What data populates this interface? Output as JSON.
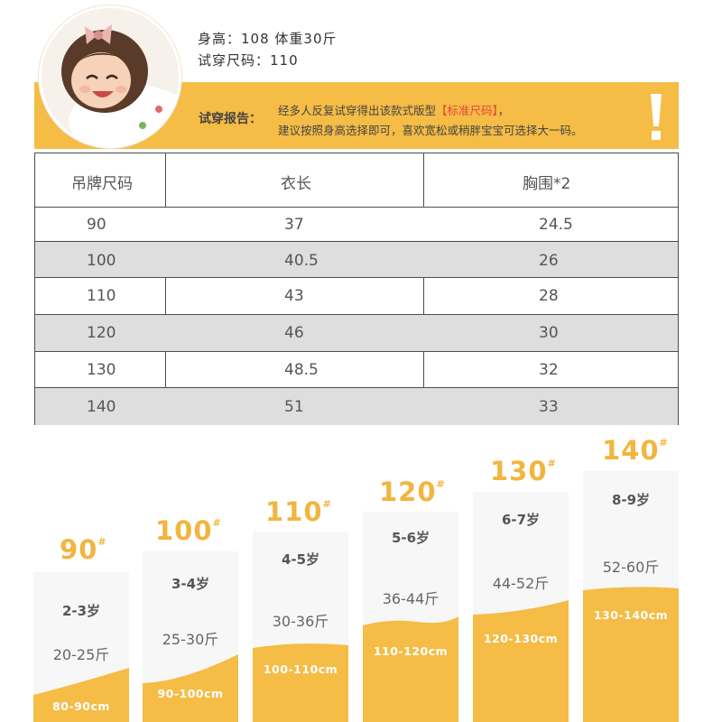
{
  "model": {
    "stats_line": "身高：108  体重30斤",
    "tried_size_line": "试穿尺码：110"
  },
  "report": {
    "label": "试穿报告：",
    "line1_before": "经多人反复试穿得出该款式版型",
    "line1_highlight": "【标准尺码】",
    "line1_after": "，",
    "line2": "建议按照身高选择即可，喜欢宽松或稍胖宝宝可选择大一码。",
    "highlight_color": "#e5463a"
  },
  "colors": {
    "accent": "#f5bc46",
    "size_number": "#f2b53f",
    "row_shade": "#dedede"
  },
  "table": {
    "headers": [
      "吊牌尺码",
      "衣长",
      "胸围*2"
    ],
    "rows": [
      [
        "90",
        "37",
        "24.5"
      ],
      [
        "100",
        "40.5",
        "26"
      ],
      [
        "110",
        "43",
        "28"
      ],
      [
        "120",
        "46",
        "30"
      ],
      [
        "130",
        "48.5",
        "32"
      ],
      [
        "140",
        "51",
        "33"
      ]
    ]
  },
  "size_cards": [
    {
      "size": "90",
      "mark": "#",
      "age": "2-3岁",
      "weight": "20-25斤",
      "height": "80-90cm"
    },
    {
      "size": "100",
      "mark": "#",
      "age": "3-4岁",
      "weight": "25-30斤",
      "height": "90-100cm"
    },
    {
      "size": "110",
      "mark": "#",
      "age": "4-5岁",
      "weight": "30-36斤",
      "height": "100-110cm"
    },
    {
      "size": "120",
      "mark": "#",
      "age": "5-6岁",
      "weight": "36-44斤",
      "height": "110-120cm"
    },
    {
      "size": "130",
      "mark": "#",
      "age": "6-7岁",
      "weight": "44-52斤",
      "height": "120-130cm"
    },
    {
      "size": "140",
      "mark": "#",
      "age": "8-9岁",
      "weight": "52-60斤",
      "height": "130-140cm"
    }
  ]
}
